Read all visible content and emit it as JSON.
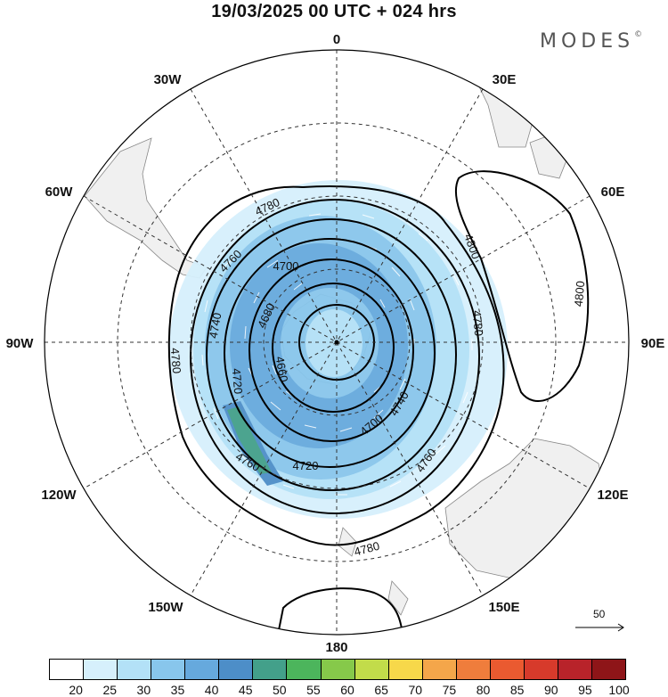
{
  "title": "19/03/2025  00 UTC  + 024 hrs",
  "brand": "MODES",
  "brand_mark": "©",
  "longitude_labels": [
    "0",
    "30E",
    "60E",
    "90E",
    "120E",
    "150E",
    "180",
    "150W",
    "120W",
    "90W",
    "60W",
    "30W"
  ],
  "contour_labels": [
    "4780",
    "4760",
    "4740",
    "4720",
    "4700",
    "4680",
    "4660",
    "4800"
  ],
  "colorbar": {
    "ticks": [
      "20",
      "25",
      "30",
      "35",
      "40",
      "45",
      "50",
      "55",
      "60",
      "65",
      "70",
      "75",
      "80",
      "85",
      "90",
      "95",
      "100"
    ],
    "colors": [
      "#ffffff",
      "#d6f0fc",
      "#b3e1f7",
      "#88c6ec",
      "#66a9dd",
      "#4d8ec8",
      "#43a08a",
      "#4cb55c",
      "#86c94a",
      "#c2dc4a",
      "#f7d84a",
      "#f4a64a",
      "#ef7d3c",
      "#ea5a30",
      "#d73a2b",
      "#b8232a",
      "#8e1518"
    ]
  },
  "vector_reference": {
    "label": "50"
  },
  "map": {
    "projection": "south polar stereographic",
    "field": "geopotential height contours with wind speed shading"
  }
}
